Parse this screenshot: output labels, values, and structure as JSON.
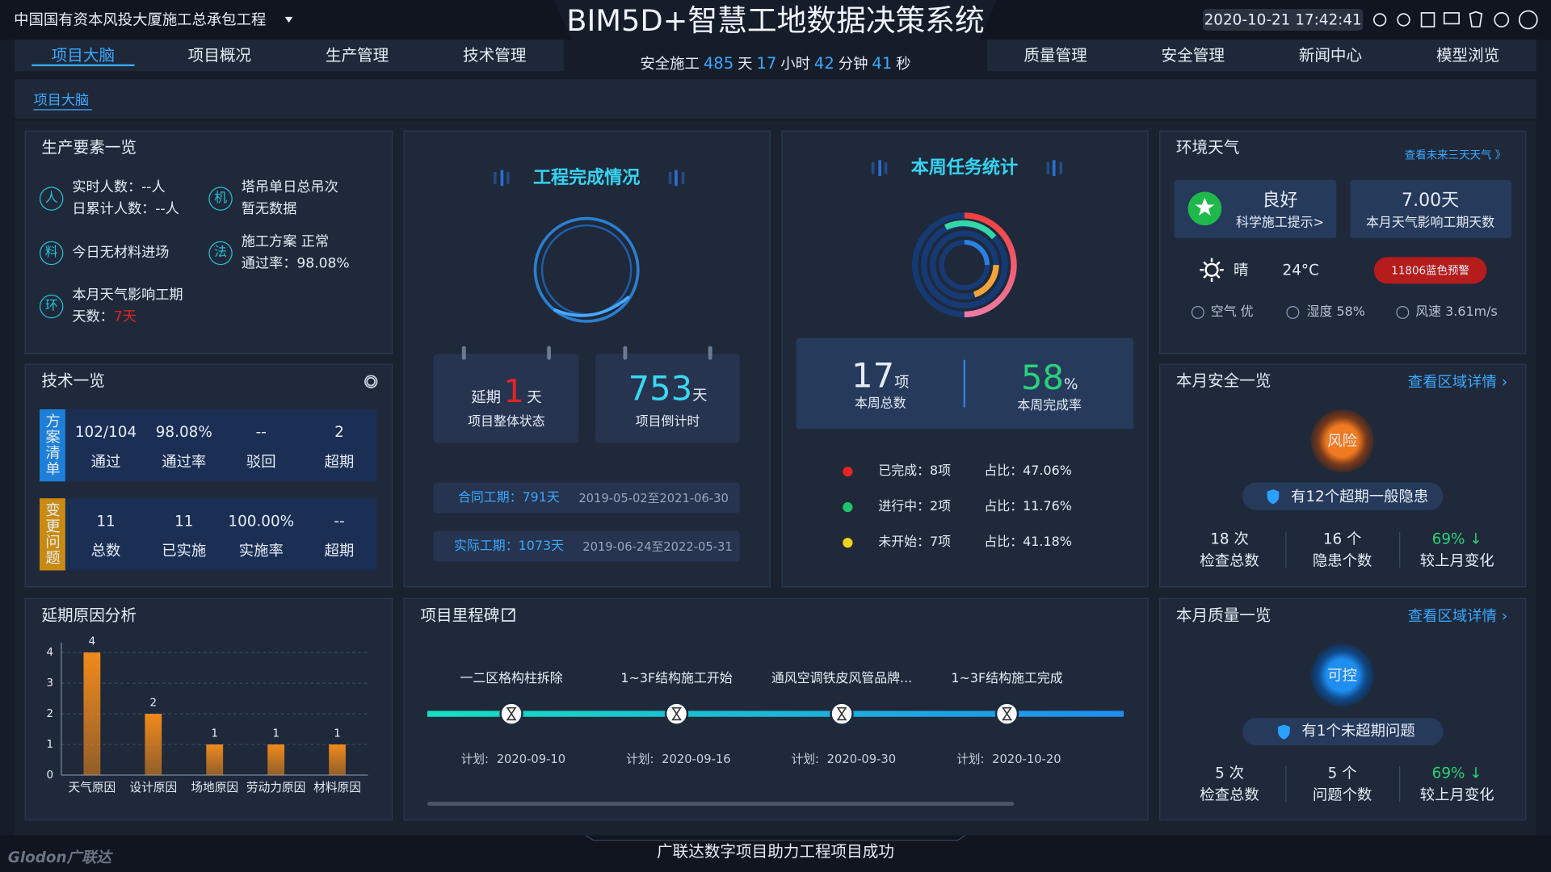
{
  "header": {
    "project": "中国国有资本风投大厦施工总承包工程",
    "title": "BIM5D+智慧工地数据决策系统",
    "datetime": "2020-10-21 17:42:41"
  },
  "nav": {
    "left": [
      "项目大脑",
      "项目概况",
      "生产管理",
      "技术管理"
    ],
    "right": [
      "质量管理",
      "安全管理",
      "新闻中心",
      "模型浏览"
    ]
  },
  "safety_counter": {
    "prefix": "安全施工",
    "days": "485",
    "days_unit": "天",
    "hours": "17",
    "hours_unit": "小时",
    "minutes": "42",
    "minutes_unit": "分钟",
    "seconds": "41",
    "seconds_unit": "秒"
  },
  "breadcrumb": "项目大脑",
  "production": {
    "title": "生产要素一览",
    "items": [
      {
        "icon": "人",
        "lines": [
          "实时人数：--人",
          "日累计人数：--人"
        ]
      },
      {
        "icon": "机",
        "lines": [
          "塔吊单日总吊次",
          "暂无数据"
        ]
      },
      {
        "icon": "料",
        "lines": [
          "今日无材料进场"
        ]
      },
      {
        "icon": "法",
        "lines": [
          "施工方案  正常",
          "通过率：98.08%"
        ]
      },
      {
        "icon": "环",
        "lines": [
          "本月天气影响工期",
          "天数："
        ],
        "highlight": "7天"
      }
    ]
  },
  "tech": {
    "title": "技术一览",
    "groups": [
      {
        "label": "方案清单",
        "cells": [
          {
            "value": "102/104",
            "label": "通过"
          },
          {
            "value": "98.08%",
            "label": "通过率"
          },
          {
            "value": "--",
            "label": "驳回"
          },
          {
            "value": "2",
            "label": "超期"
          }
        ]
      },
      {
        "label": "变更问题",
        "cells": [
          {
            "value": "11",
            "label": "总数"
          },
          {
            "value": "11",
            "label": "已实施"
          },
          {
            "value": "100.00%",
            "label": "实施率"
          },
          {
            "value": "--",
            "label": "超期"
          }
        ]
      }
    ]
  },
  "completion": {
    "title": "工程完成情况",
    "delay": {
      "prefix": "延期",
      "value": "1",
      "unit": "天",
      "label": "项目整体状态"
    },
    "countdown": {
      "value": "753",
      "unit": "天",
      "label": "项目倒计时"
    },
    "contract": {
      "label": "合同工期：791天",
      "range": "2019-05-02至2021-06-30"
    },
    "actual": {
      "label": "实际工期：1073天",
      "range": "2019-06-24至2022-05-31"
    }
  },
  "tasks": {
    "title": "本周任务统计",
    "total": {
      "value": "17",
      "unit": "项",
      "label": "本周总数"
    },
    "rate": {
      "value": "58",
      "unit": "%",
      "label": "本周完成率"
    },
    "items": [
      {
        "status": "已完成：8项",
        "share": "占比：47.06%",
        "color": "#e52424"
      },
      {
        "status": "进行中：2项",
        "share": "占比：11.76%",
        "color": "#1fc36c"
      },
      {
        "status": "未开始：7项",
        "share": "占比：41.18%",
        "color": "#f2d21c"
      }
    ]
  },
  "weather": {
    "title": "环境天气",
    "link": "查看未来三天天气 》",
    "quality": "良好",
    "tip": "科学施工提示>",
    "days": "7.00天",
    "days_label": "本月天气影响工期天数",
    "condition": "晴",
    "temp": "24°C",
    "alert": "11806蓝色预警",
    "air": "空气 优",
    "humidity": "湿度 58%",
    "wind": "风速 3.61m/s"
  },
  "safety": {
    "title": "本月安全一览",
    "link": "查看区域详情 ›",
    "status": "风险",
    "notice": "有12个超期一般隐患",
    "stats": [
      {
        "value": "18 次",
        "label": "检查总数"
      },
      {
        "value": "16 个",
        "label": "隐患个数"
      },
      {
        "value": "69% ↓",
        "label": "较上月变化"
      }
    ]
  },
  "quality": {
    "title": "本月质量一览",
    "link": "查看区域详情 ›",
    "status": "可控",
    "notice": "有1个未超期问题",
    "stats": [
      {
        "value": "5 次",
        "label": "检查总数"
      },
      {
        "value": "5 个",
        "label": "问题个数"
      },
      {
        "value": "69% ↓",
        "label": "较上月变化"
      }
    ]
  },
  "chart_data": {
    "type": "bar",
    "title": "延期原因分析",
    "categories": [
      "天气原因",
      "设计原因",
      "场地原因",
      "劳动力原因",
      "材料原因"
    ],
    "values": [
      4,
      2,
      1,
      1,
      1
    ],
    "color": "#f08a1c",
    "ylim": [
      0,
      4
    ],
    "yticks": [
      0,
      1,
      2,
      3,
      4
    ],
    "grid": true
  },
  "milestones": {
    "title": "项目里程碑",
    "plan_label": "计划:",
    "items": [
      {
        "name": "一二区格构柱拆除",
        "date": "2020-09-10"
      },
      {
        "name": "1~3F结构施工开始",
        "date": "2020-09-16"
      },
      {
        "name": "通风空调铁皮风管品牌...",
        "date": "2020-09-30"
      },
      {
        "name": "1~3F结构施工完成",
        "date": "2020-10-20"
      }
    ]
  },
  "footer": {
    "slogan": "广联达数字项目助力工程项目成功",
    "logo": "Glodon广联达"
  }
}
